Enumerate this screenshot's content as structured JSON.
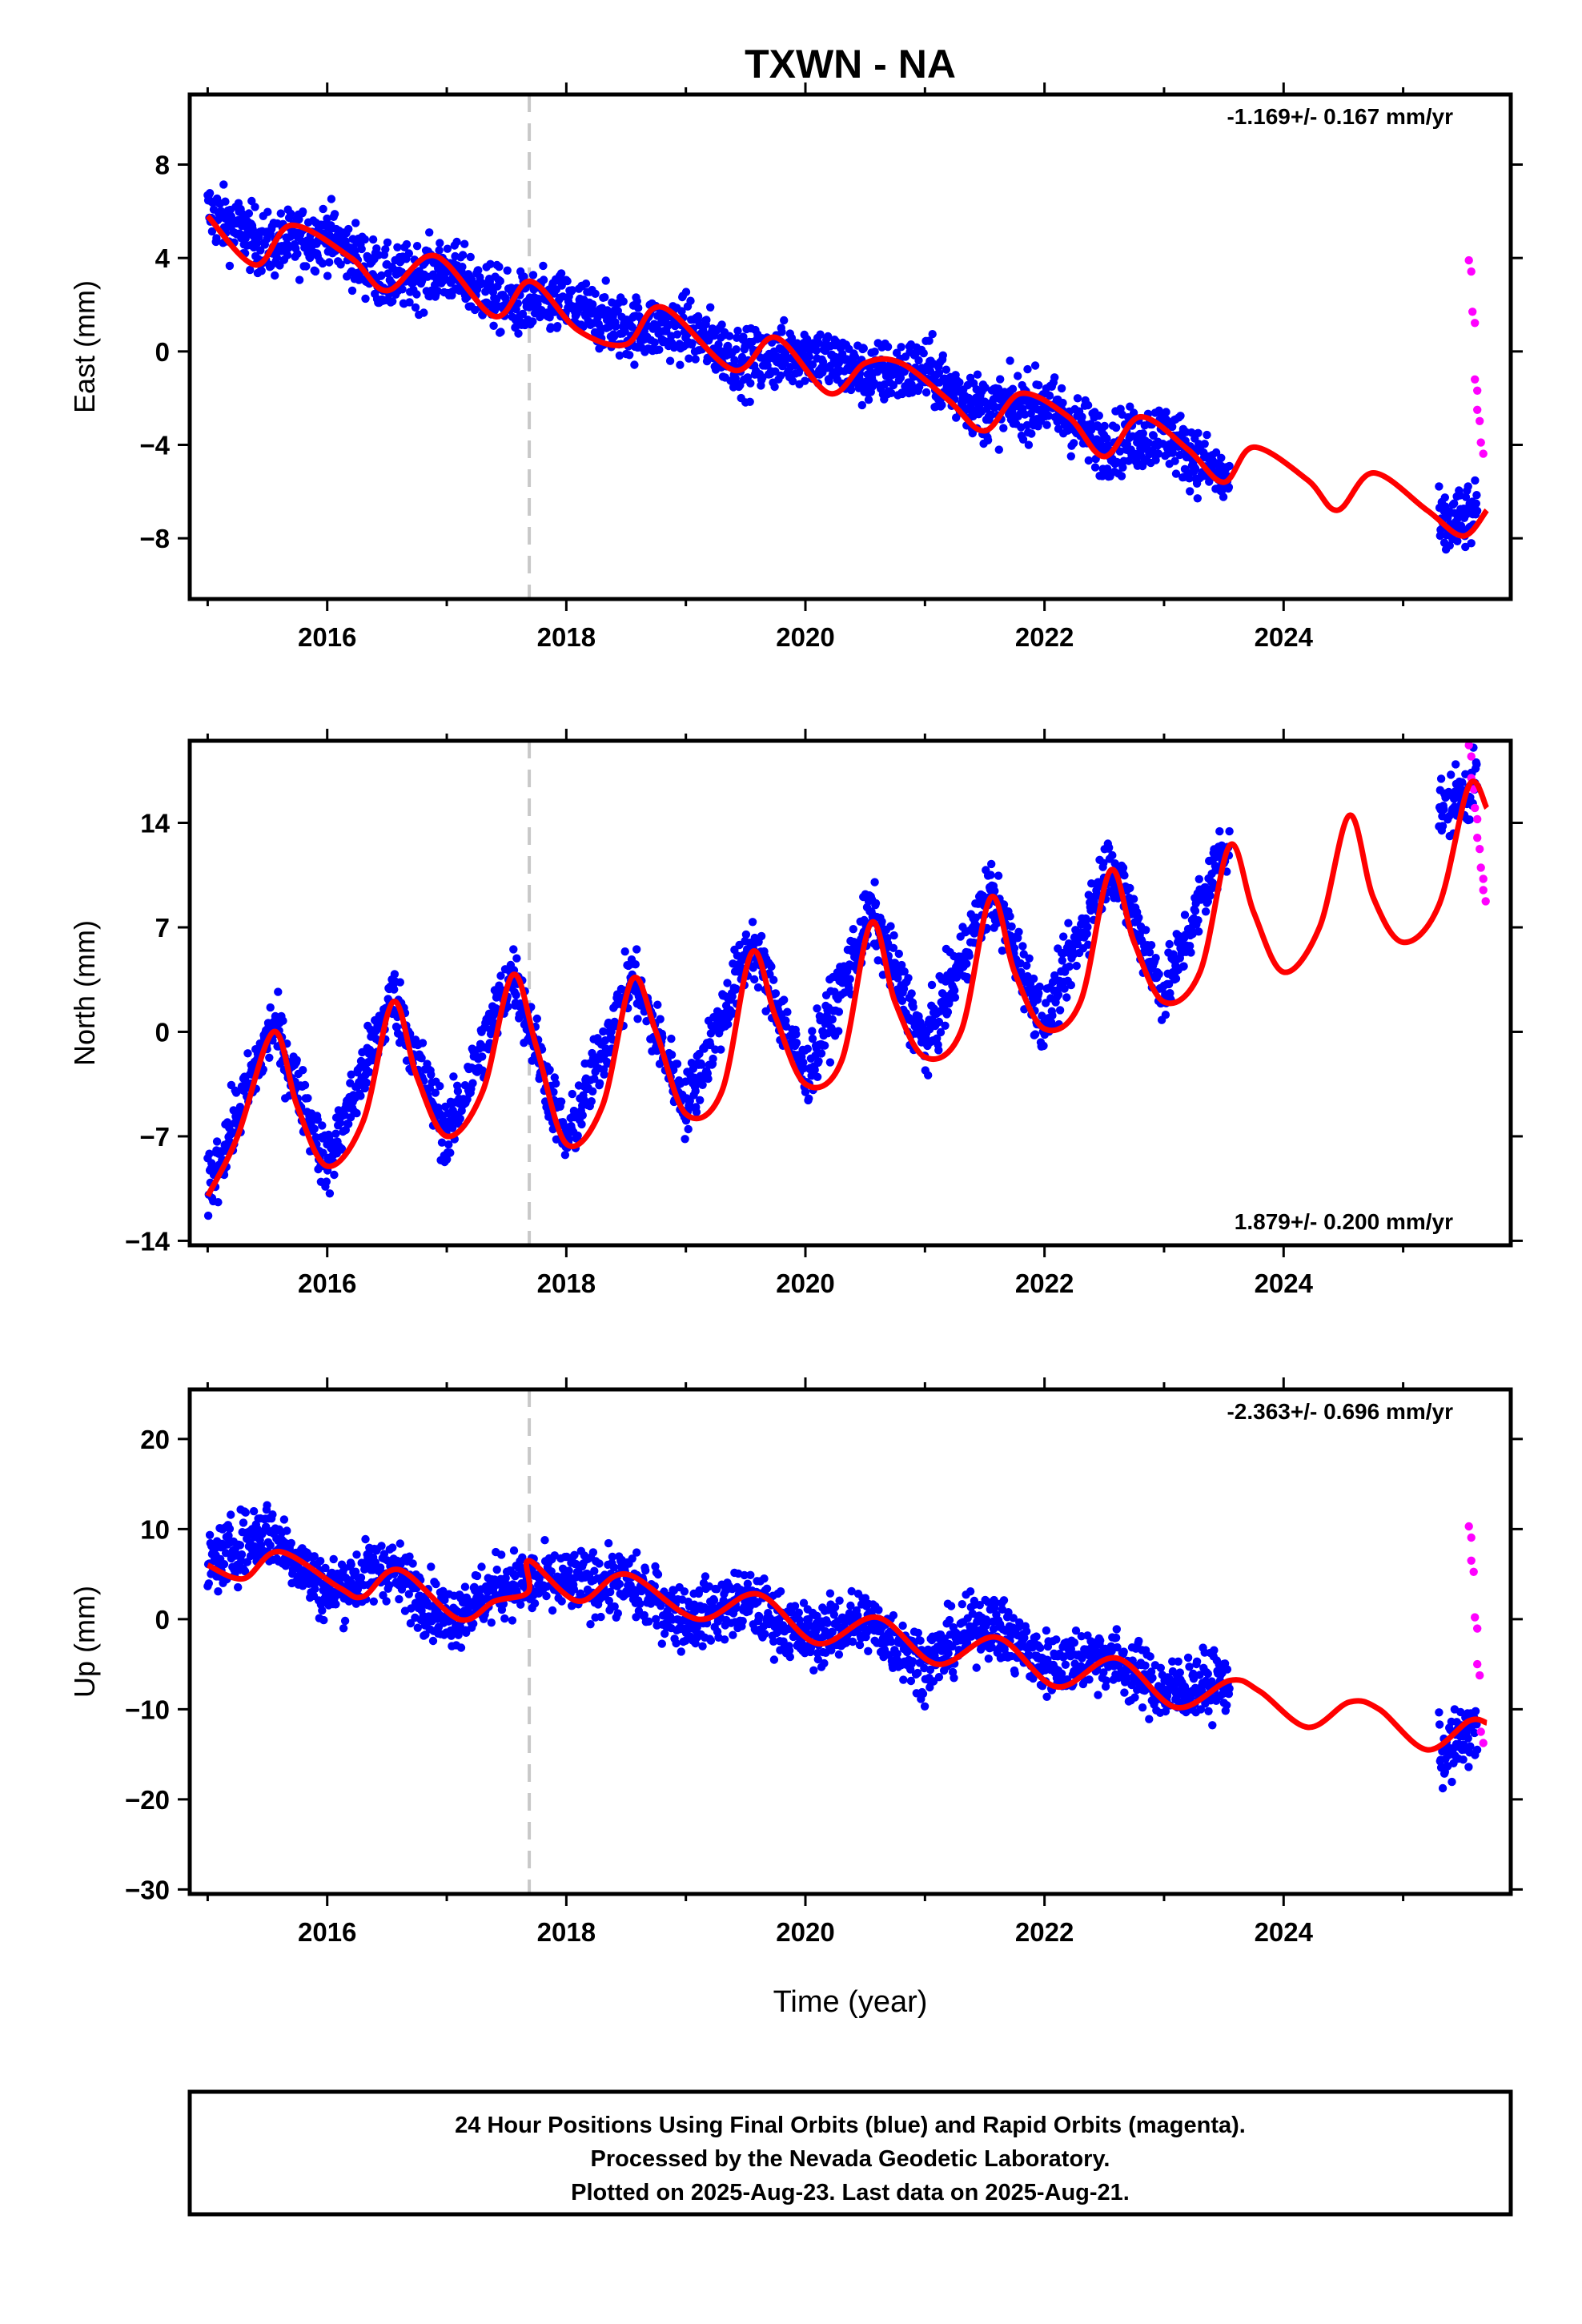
{
  "title": "TXWN - NA",
  "xlabel": "Time (year)",
  "caption": [
    "24 Hour Positions Using Final Orbits (blue) and Rapid Orbits (magenta).",
    "Processed by the Nevada Geodetic Laboratory.",
    "Plotted on 2025-Aug-23. Last data on 2025-Aug-21."
  ],
  "colors": {
    "final": "#0000ff",
    "rapid": "#ff00ff",
    "model": "#ff0000",
    "event": "#c8c8c8",
    "frame": "#000000"
  },
  "chart_data": [
    {
      "type": "scatter",
      "ylabel": "East (mm)",
      "rate": "-1.169+/- 0.167 mm/yr",
      "rate_position": "top-right",
      "xlim": [
        2014.85,
        2025.9
      ],
      "ylim": [
        -10.6,
        11.0
      ],
      "xticks": [
        2016,
        2018,
        2020,
        2022,
        2024
      ],
      "yticks": [
        -8,
        -4,
        0,
        4,
        8
      ],
      "tick_labels": [
        "−8",
        "−4",
        "0",
        "4",
        "8"
      ],
      "event_year": 2017.69,
      "series": [
        {
          "name": "final",
          "x": [
            2015.0,
            2015.5,
            2016.0,
            2016.5,
            2017.0,
            2017.5,
            2018.0,
            2018.5,
            2019.0,
            2019.5,
            2020.0,
            2020.5,
            2021.0,
            2021.5,
            2022.0,
            2022.5,
            2023.0,
            2023.5,
            2025.35,
            2025.6
          ],
          "y": [
            6.0,
            4.5,
            5.0,
            3.0,
            3.5,
            2.0,
            2.0,
            1.0,
            1.0,
            -0.5,
            0.0,
            -1.0,
            -0.8,
            -2.5,
            -2.2,
            -4.0,
            -3.5,
            -5.5,
            -7.5,
            -7.0
          ]
        },
        {
          "name": "rapid",
          "x": [
            2025.55,
            2025.58,
            2025.6,
            2025.62,
            2025.65
          ],
          "y": [
            3.9,
            1.7,
            -1.2,
            -2.5,
            -3.9
          ]
        },
        {
          "name": "model",
          "x": [
            2015.0,
            2015.4,
            2015.7,
            2016.2,
            2016.5,
            2016.9,
            2017.4,
            2017.7,
            2018.1,
            2018.5,
            2018.8,
            2019.4,
            2019.75,
            2020.2,
            2020.5,
            2020.8,
            2021.2,
            2021.5,
            2021.8,
            2022.2,
            2022.5,
            2022.8,
            2023.2,
            2023.5,
            2023.75,
            2024.2,
            2024.45,
            2024.75,
            2025.2,
            2025.5,
            2025.7
          ],
          "y": [
            5.8,
            3.7,
            5.4,
            4.0,
            2.6,
            4.1,
            1.5,
            3.0,
            0.9,
            0.3,
            1.9,
            -0.8,
            0.6,
            -1.8,
            -0.5,
            -0.5,
            -2.1,
            -3.4,
            -1.8,
            -2.8,
            -4.5,
            -2.8,
            -4.2,
            -5.6,
            -4.1,
            -5.5,
            -6.8,
            -5.2,
            -6.8,
            -7.9,
            -6.8
          ]
        }
      ]
    },
    {
      "type": "scatter",
      "ylabel": "North (mm)",
      "rate": "1.879+/- 0.200 mm/yr",
      "rate_position": "bottom-right",
      "xlim": [
        2014.85,
        2025.9
      ],
      "ylim": [
        -14.3,
        19.5
      ],
      "xticks": [
        2016,
        2018,
        2020,
        2022,
        2024
      ],
      "yticks": [
        -14,
        -7,
        0,
        7,
        14
      ],
      "tick_labels": [
        "−14",
        "−7",
        "0",
        "7",
        "14"
      ],
      "event_year": 2017.69,
      "series": [
        {
          "name": "final",
          "x": [
            2015.0,
            2015.55,
            2016.0,
            2016.55,
            2017.0,
            2017.55,
            2018.0,
            2018.55,
            2019.0,
            2019.55,
            2020.0,
            2020.55,
            2021.0,
            2021.55,
            2022.0,
            2022.55,
            2023.0,
            2023.5,
            2025.35,
            2025.6
          ],
          "y": [
            -10.5,
            0.5,
            -9.0,
            2.5,
            -7.0,
            4.0,
            -7.5,
            3.8,
            -5.0,
            6.0,
            -3.0,
            8.0,
            -1.0,
            9.5,
            0.5,
            11.5,
            2.5,
            12.5,
            15.0,
            16.5
          ]
        },
        {
          "name": "rapid",
          "x": [
            2025.55,
            2025.57,
            2025.6,
            2025.62,
            2025.65,
            2025.67
          ],
          "y": [
            19.2,
            17.0,
            15.0,
            13.0,
            11.0,
            9.5
          ]
        },
        {
          "name": "model",
          "x": [
            2015.0,
            2015.25,
            2015.55,
            2015.75,
            2016.0,
            2016.3,
            2016.55,
            2016.75,
            2017.0,
            2017.3,
            2017.55,
            2017.75,
            2018.0,
            2018.3,
            2018.55,
            2018.75,
            2019.0,
            2019.3,
            2019.55,
            2019.75,
            2020.0,
            2020.3,
            2020.55,
            2020.75,
            2021.0,
            2021.3,
            2021.55,
            2021.75,
            2022.0,
            2022.3,
            2022.55,
            2022.75,
            2023.0,
            2023.3,
            2023.55,
            2023.75,
            2024.0,
            2024.3,
            2024.55,
            2024.75,
            2025.0,
            2025.3,
            2025.55,
            2025.7
          ],
          "y": [
            -11.0,
            -7.0,
            0.0,
            -5.0,
            -9.0,
            -6.0,
            2.0,
            -3.0,
            -7.0,
            -4.0,
            3.8,
            -1.0,
            -7.5,
            -5.0,
            3.5,
            0.0,
            -5.5,
            -4.0,
            5.3,
            1.0,
            -3.5,
            -2.0,
            7.3,
            2.0,
            -1.7,
            0.0,
            9.0,
            4.0,
            0.2,
            2.0,
            10.8,
            6.0,
            2.0,
            4.0,
            12.5,
            8.0,
            4.0,
            7.0,
            14.5,
            9.0,
            6.0,
            8.5,
            16.5,
            15.0
          ]
        }
      ]
    },
    {
      "type": "scatter",
      "ylabel": "Up (mm)",
      "rate": "-2.363+/- 0.696 mm/yr",
      "rate_position": "top-right",
      "xlim": [
        2014.85,
        2025.9
      ],
      "ylim": [
        -30.5,
        25.5
      ],
      "xticks": [
        2016,
        2018,
        2020,
        2022,
        2024
      ],
      "yticks": [
        -30,
        -20,
        -10,
        0,
        10,
        20
      ],
      "tick_labels": [
        "−30",
        "−20",
        "−10",
        "0",
        "10",
        "20"
      ],
      "event_year": 2017.69,
      "series": [
        {
          "name": "final",
          "x": [
            2015.0,
            2015.5,
            2016.0,
            2016.5,
            2017.0,
            2017.5,
            2018.0,
            2018.5,
            2019.0,
            2019.5,
            2020.0,
            2020.5,
            2021.0,
            2021.5,
            2022.0,
            2022.5,
            2023.0,
            2023.5,
            2025.35,
            2025.6
          ],
          "y": [
            6.0,
            10.0,
            3.0,
            6.0,
            0.0,
            4.0,
            4.0,
            4.0,
            0.0,
            2.0,
            -2.0,
            0.0,
            -5.0,
            0.0,
            -5.0,
            -4.0,
            -8.0,
            -7.0,
            -15.0,
            -12.0
          ]
        },
        {
          "name": "rapid",
          "x": [
            2025.55,
            2025.57,
            2025.6,
            2025.62,
            2025.65
          ],
          "y": [
            10.3,
            6.5,
            0.2,
            -5.0,
            -12.5
          ]
        },
        {
          "name": "model",
          "x": [
            2015.0,
            2015.3,
            2015.6,
            2016.1,
            2016.3,
            2016.6,
            2017.1,
            2017.4,
            2017.68,
            2017.69,
            2018.1,
            2018.5,
            2019.1,
            2019.6,
            2020.1,
            2020.6,
            2021.1,
            2021.6,
            2022.1,
            2022.6,
            2023.1,
            2023.55,
            2023.8,
            2024.2,
            2024.55,
            2024.8,
            2025.2,
            2025.55,
            2025.7
          ],
          "y": [
            6.0,
            4.5,
            7.5,
            3.5,
            2.5,
            5.5,
            0.0,
            2.0,
            3.0,
            6.5,
            2.0,
            5.0,
            0.0,
            2.8,
            -2.7,
            0.2,
            -5.0,
            -2.0,
            -7.5,
            -4.3,
            -9.8,
            -6.8,
            -8.0,
            -12.0,
            -9.2,
            -10.0,
            -14.5,
            -11.3,
            -11.5
          ]
        }
      ]
    }
  ]
}
